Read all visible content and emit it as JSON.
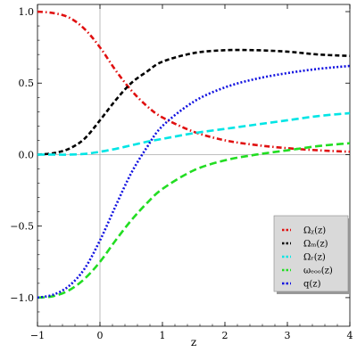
{
  "chart_data": {
    "type": "line",
    "title": "",
    "xlabel": "z",
    "ylabel": "",
    "xlim": [
      -1,
      4
    ],
    "ylim": [
      -1.2,
      1.05
    ],
    "xticks": [
      -1,
      0,
      1,
      2,
      3,
      4
    ],
    "yticks": [
      1.0,
      0.5,
      0.0,
      -0.5,
      -1.0
    ],
    "xtick_labels": [
      "−1",
      "0",
      "1",
      "2",
      "3",
      "4"
    ],
    "ytick_labels": [
      "1.0",
      "0.5",
      "0.0",
      "−0.5",
      "−1.0"
    ],
    "grid": false,
    "legend_position": "bottom-right",
    "x": [
      -1,
      -0.75,
      -0.5,
      -0.25,
      0,
      0.25,
      0.5,
      0.75,
      1,
      1.5,
      2,
      2.5,
      3,
      3.5,
      4
    ],
    "series": [
      {
        "name": "Ωᵪ(z)",
        "color": "#e01010",
        "dash": "dash-dot",
        "values": [
          1.0,
          0.99,
          0.96,
          0.88,
          0.75,
          0.59,
          0.45,
          0.34,
          0.26,
          0.16,
          0.1,
          0.067,
          0.045,
          0.03,
          0.02
        ]
      },
      {
        "name": "Ωₘ(z)",
        "color": "#000000",
        "dash": "dashed",
        "values": [
          0.0,
          0.01,
          0.04,
          0.11,
          0.24,
          0.38,
          0.5,
          0.58,
          0.65,
          0.71,
          0.73,
          0.73,
          0.72,
          0.7,
          0.69
        ]
      },
      {
        "name": "Ωᵣ(z)",
        "color": "#00e5e5",
        "dash": "long-dashed",
        "values": [
          0.0,
          0.0,
          0.0,
          0.005,
          0.02,
          0.04,
          0.065,
          0.09,
          0.11,
          0.15,
          0.18,
          0.21,
          0.24,
          0.27,
          0.29
        ]
      },
      {
        "name": "ωₑₒₒ(z)",
        "color": "#22dd22",
        "dash": "long-dashed",
        "values": [
          -1.0,
          -0.99,
          -0.95,
          -0.87,
          -0.75,
          -0.6,
          -0.46,
          -0.34,
          -0.24,
          -0.11,
          -0.04,
          0.0,
          0.03,
          0.06,
          0.08
        ]
      },
      {
        "name": "q(z)",
        "color": "#1010e0",
        "dash": "dotted",
        "values": [
          -1.0,
          -0.98,
          -0.92,
          -0.8,
          -0.6,
          -0.36,
          -0.13,
          0.05,
          0.2,
          0.37,
          0.47,
          0.53,
          0.57,
          0.6,
          0.62
        ]
      }
    ]
  },
  "legend": {
    "items": [
      "Ωᵪ(z)",
      "Ωₘ(z)",
      "Ωᵣ(z)",
      "ωₑₒₒ(z)",
      "q(z)"
    ]
  }
}
